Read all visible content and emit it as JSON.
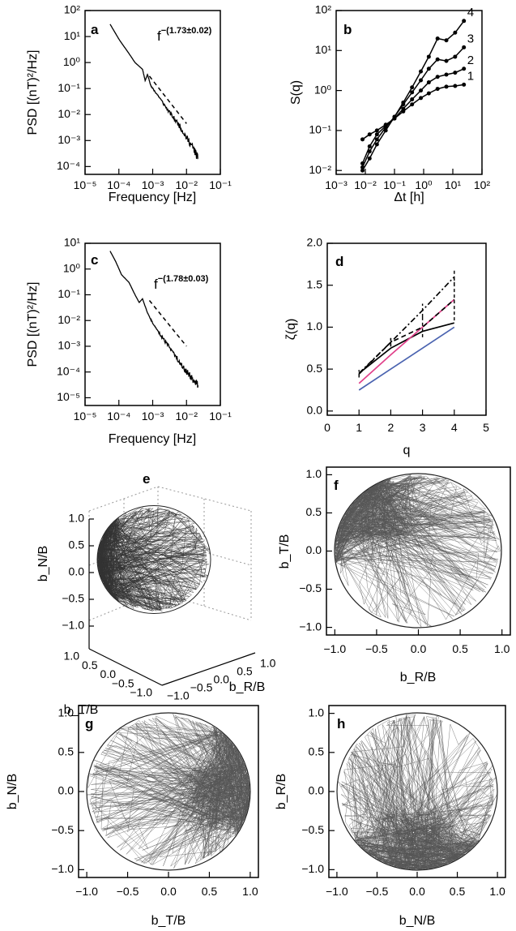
{
  "colors": {
    "black": "#000000",
    "pink": "#e0408a",
    "blue": "#4a63b0",
    "gray": "#555555"
  },
  "chart_data": [
    {
      "panel": "a",
      "type": "line",
      "xlabel": "Frequency [Hz]",
      "ylabel": "PSD [(nT)²/Hz]",
      "xscale": "log",
      "yscale": "log",
      "xlim": [
        1e-05,
        0.1
      ],
      "ylim": [
        5e-05,
        100
      ],
      "xticks": [
        "10⁻⁵",
        "10⁻⁴",
        "10⁻³",
        "10⁻²",
        "10⁻¹"
      ],
      "yticks": [
        "10²",
        "10¹",
        "10⁰",
        "10⁻¹",
        "10⁻²",
        "10⁻³",
        "10⁻⁴"
      ],
      "annotation": {
        "text": "f",
        "exponent": "−(1.73±0.02)"
      },
      "series": [
        {
          "style": "solid",
          "x": [
            5.5e-05,
            0.0001,
            0.0002,
            0.0003,
            0.0005,
            0.0006,
            0.0007,
            0.0009,
            0.0015,
            0.003,
            0.006,
            0.01,
            0.016,
            0.022
          ],
          "y": [
            30,
            8,
            2.2,
            1.0,
            0.55,
            0.2,
            0.35,
            0.12,
            0.05,
            0.013,
            0.004,
            0.0013,
            0.0005,
            0.0002
          ]
        },
        {
          "style": "dashed",
          "x": [
            0.0008,
            0.01
          ],
          "y": [
            0.3,
            0.0045
          ]
        }
      ]
    },
    {
      "panel": "b",
      "type": "line",
      "xlabel": "Δt [h]",
      "ylabel": "S(q)",
      "xscale": "log",
      "yscale": "log",
      "xlim": [
        0.001,
        100
      ],
      "ylim": [
        0.008,
        100
      ],
      "xticks": [
        "10⁻³",
        "10⁻²",
        "10⁻¹",
        "10⁰",
        "10¹",
        "10²"
      ],
      "yticks": [
        "10²",
        "10¹",
        "10⁰",
        "10⁻¹",
        "10⁻²"
      ],
      "x": [
        0.008,
        0.014,
        0.025,
        0.05,
        0.1,
        0.2,
        0.4,
        0.8,
        1.5,
        3,
        6,
        12,
        24
      ],
      "series": [
        {
          "name": "1",
          "values": [
            0.06,
            0.08,
            0.1,
            0.14,
            0.2,
            0.3,
            0.45,
            0.65,
            0.85,
            1.1,
            1.25,
            1.3,
            1.4
          ]
        },
        {
          "name": "2",
          "values": [
            0.015,
            0.04,
            0.08,
            0.13,
            0.2,
            0.35,
            0.6,
            1.0,
            1.6,
            2.2,
            2.5,
            2.8,
            3.5
          ]
        },
        {
          "name": "3",
          "values": [
            0.012,
            0.03,
            0.06,
            0.12,
            0.22,
            0.45,
            0.9,
            1.8,
            3.5,
            6.0,
            5.5,
            7.0,
            12
          ]
        },
        {
          "name": "4",
          "values": [
            0.01,
            0.02,
            0.045,
            0.1,
            0.22,
            0.5,
            1.2,
            3.0,
            7.0,
            20,
            18,
            28,
            55
          ]
        }
      ]
    },
    {
      "panel": "c",
      "type": "line",
      "xlabel": "Frequency [Hz]",
      "ylabel": "PSD [(nT)²/Hz]",
      "xscale": "log",
      "yscale": "log",
      "xlim": [
        1e-05,
        0.1
      ],
      "ylim": [
        5e-06,
        10
      ],
      "xticks": [
        "10⁻⁵",
        "10⁻⁴",
        "10⁻³",
        "10⁻²",
        "10⁻¹"
      ],
      "yticks": [
        "10¹",
        "10⁰",
        "10⁻¹",
        "10⁻²",
        "10⁻³",
        "10⁻⁴",
        "10⁻⁵"
      ],
      "annotation": {
        "text": "f",
        "exponent": "−(1.78±0.03)"
      },
      "series": [
        {
          "style": "solid",
          "x": [
            5.5e-05,
            8e-05,
            0.00012,
            0.0002,
            0.0003,
            0.0004,
            0.0005,
            0.0007,
            0.001,
            0.002,
            0.004,
            0.008,
            0.013,
            0.022
          ],
          "y": [
            5,
            2,
            0.6,
            0.3,
            0.1,
            0.05,
            0.07,
            0.02,
            0.008,
            0.002,
            0.0006,
            0.00015,
            7e-05,
            3e-05
          ]
        },
        {
          "style": "dashed",
          "x": [
            0.0008,
            0.01
          ],
          "y": [
            0.06,
            0.001
          ]
        }
      ]
    },
    {
      "panel": "d",
      "type": "line",
      "xlabel": "q",
      "ylabel": "ζ(q)",
      "xlim": [
        0,
        5
      ],
      "ylim": [
        -0.05,
        2.0
      ],
      "xticks": [
        "0",
        "1",
        "2",
        "3",
        "4",
        "5"
      ],
      "yticks": [
        "2.0",
        "1.5",
        "1.0",
        "0.5",
        "0.0"
      ],
      "x": [
        1,
        2,
        3,
        4
      ],
      "series": [
        {
          "style": "solid-black",
          "values": [
            0.45,
            0.75,
            0.95,
            1.05
          ]
        },
        {
          "style": "pink",
          "values": [
            0.33,
            0.67,
            1.0,
            1.33
          ]
        },
        {
          "style": "blue",
          "values": [
            0.25,
            0.5,
            0.75,
            1.0
          ]
        },
        {
          "style": "dashed",
          "values": [
            0.44,
            0.82,
            1.0,
            1.33
          ],
          "err": [
            0.04,
            0.05,
            0.12,
            0.25
          ]
        },
        {
          "style": "dashdot",
          "values": [
            0.45,
            0.82,
            1.2,
            1.6
          ],
          "err": [
            0.04,
            0.05,
            0.08,
            0.1
          ]
        }
      ]
    },
    {
      "panel": "e",
      "type": "scatter",
      "xlabel": "b_R/B",
      "ylabel": "b_N/B",
      "zlabel": "b_T/B",
      "zticks": [
        "1.0",
        "0.5",
        "0.0",
        "−0.5",
        "−1.0"
      ],
      "tticks": [
        "1.0",
        "0.5",
        "0.0",
        "−0.5",
        "−1.0"
      ],
      "rticks": [
        "−1.0",
        "−0.5",
        "0.0",
        "0.5",
        "1.0"
      ]
    },
    {
      "panel": "f",
      "type": "scatter",
      "xlabel": "b_R/B",
      "ylabel": "b_T/B",
      "xlim": [
        -1.1,
        1.1
      ],
      "ylim": [
        -1.1,
        1.1
      ],
      "xticks": [
        "−1.0",
        "−0.5",
        "0.0",
        "0.5",
        "1.0"
      ],
      "yticks": [
        "1.0",
        "0.5",
        "0.0",
        "−0.5",
        "−1.0"
      ]
    },
    {
      "panel": "g",
      "type": "scatter",
      "xlabel": "b_T/B",
      "ylabel": "b_N/B",
      "xlim": [
        -1.1,
        1.1
      ],
      "ylim": [
        -1.1,
        1.1
      ],
      "xticks": [
        "−1.0",
        "−0.5",
        "0.0",
        "0.5",
        "1.0"
      ],
      "yticks": [
        "1.0",
        "0.5",
        "0.0",
        "−0.5",
        "−1.0"
      ]
    },
    {
      "panel": "h",
      "type": "scatter",
      "xlabel": "b_N/B",
      "ylabel": "b_R/B",
      "xlim": [
        -1.1,
        1.1
      ],
      "ylim": [
        -1.1,
        1.1
      ],
      "xticks": [
        "−1.0",
        "−0.5",
        "0.0",
        "0.5",
        "1.0"
      ],
      "yticks": [
        "1.0",
        "0.5",
        "0.0",
        "−0.5",
        "−1.0"
      ]
    }
  ]
}
